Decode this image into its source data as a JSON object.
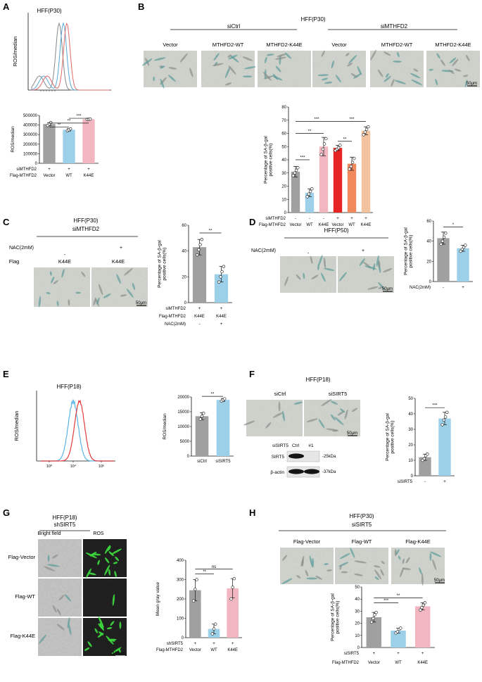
{
  "panels": {
    "A": {
      "letter": "A",
      "histogram": {
        "title": "HFF(P30)",
        "ylabel": "ROS/median",
        "line_colors": [
          "#888888",
          "#5aa7d8",
          "#e06a6a"
        ]
      },
      "bar": {
        "ylabel": "ROS/median",
        "yticks": [
          "0",
          "100000",
          "200000",
          "300000",
          "400000",
          "500000"
        ],
        "rows": [
          {
            "label": "siMTHFD2",
            "values": [
              "+",
              "+",
              "+"
            ]
          },
          {
            "label": "Flag-MTHFD2",
            "values": [
              "Vector",
              "WT",
              "K44E"
            ]
          }
        ],
        "sig": [
          "**",
          "**",
          "***"
        ]
      }
    },
    "B": {
      "letter": "B",
      "title": "HFF(P30)",
      "groups": [
        "siCtrl",
        "siMTHFD2"
      ],
      "image_labels": [
        "Vector",
        "MTHFD2-WT",
        "MTHFD2-K44E",
        "Vector",
        "MTHFD2-WT",
        "MTHFD2-K44E"
      ],
      "scale": "50μm",
      "bar": {
        "ylabel": "Percentage of SA-β-gal\npositive cells(%)",
        "yticks": [
          "0",
          "10",
          "20",
          "30",
          "40",
          "50",
          "60",
          "70",
          "80"
        ],
        "rows": [
          {
            "label": "siMTHFD2",
            "values": [
              "-",
              "-",
              "-",
              "+",
              "+",
              "+"
            ]
          },
          {
            "label": "Flag-MTHFD2",
            "values": [
              "Vector",
              "WT",
              "K44E",
              "Vector",
              "WT",
              "K44E"
            ]
          }
        ],
        "sig": [
          "***",
          "**",
          "***",
          "**",
          "***"
        ]
      }
    },
    "C": {
      "letter": "C",
      "title": "HFF(P30)",
      "subtitle": "siMTHFD2",
      "nac_label": "NAC(2mM)",
      "nac_values": [
        "-",
        "+"
      ],
      "flag_label": "Flag",
      "flag_values": [
        "K44E",
        "K44E"
      ],
      "scale": "50μm",
      "bar": {
        "ylabel": "Percentage of SA-β-gal\npositive cells(%)",
        "yticks": [
          "0",
          "20",
          "40",
          "60"
        ],
        "rows": [
          {
            "label": "siMTHFD2",
            "values": [
              "+",
              "+"
            ]
          },
          {
            "label": "Flag-MTHFD2",
            "values": [
              "K44E",
              "K44E"
            ]
          },
          {
            "label": "NAC(2mM)",
            "values": [
              "-",
              "+"
            ]
          }
        ],
        "sig": [
          "**"
        ]
      }
    },
    "D": {
      "letter": "D",
      "title": "HFF(P50)",
      "nac_label": "NAC(2mM)",
      "nac_values": [
        "-",
        "+"
      ],
      "scale": "50μm",
      "bar": {
        "ylabel": "Percentage of SA-β-gal\npositive cells(%)",
        "yticks": [
          "0",
          "20",
          "40",
          "60"
        ],
        "rows": [
          {
            "label": "NAC(2mM)",
            "values": [
              "-",
              "+"
            ]
          }
        ],
        "sig": [
          "*"
        ]
      }
    },
    "E": {
      "letter": "E",
      "histogram": {
        "title": "HFF(P18)",
        "ylabel": "ROS/median",
        "xticks": [
          "10⁰",
          "10⁴",
          "10⁶"
        ],
        "line_colors": [
          "#5ab4e5",
          "#e23a3a"
        ]
      },
      "bar": {
        "ylabel": "ROS/median",
        "yticks": [
          "0",
          "5000",
          "10000",
          "15000",
          "20000"
        ],
        "categories": [
          "siCtrl",
          "siSIRT5"
        ],
        "sig": [
          "**"
        ]
      }
    },
    "F": {
      "letter": "F",
      "title": "HFF(P18)",
      "image_labels": [
        "siCtrl",
        "siSIRT5"
      ],
      "scale": "50μm",
      "blot": {
        "header_label": "siSIRT5",
        "lanes": [
          "Ctrl",
          "#1"
        ],
        "rows": [
          {
            "label": "SIRT5",
            "kda": "-25kDa"
          },
          {
            "label": "β-actin",
            "kda": "-37kDa"
          }
        ]
      },
      "bar": {
        "ylabel": "Percentage of SA-β-gal\npositive cells(%)",
        "yticks": [
          "0",
          "10",
          "20",
          "30",
          "40",
          "50"
        ],
        "rows": [
          {
            "label": "siSIRT5",
            "values": [
              "-",
              "+"
            ]
          }
        ],
        "sig": [
          "***"
        ]
      }
    },
    "G": {
      "letter": "G",
      "title": "HFF(P18)",
      "subtitle": "shSIRT5",
      "col_labels": [
        "Bright field",
        "ROS"
      ],
      "row_labels": [
        "Flag-Vector",
        "Flag-WT",
        "Flag-K44E"
      ],
      "scale": "100μm",
      "bar": {
        "ylabel": "Mean gray value",
        "yticks": [
          "0",
          "100",
          "200",
          "300",
          "400"
        ],
        "rows": [
          {
            "label": "shSIRT5",
            "values": [
              "+",
              "+",
              "+"
            ]
          },
          {
            "label": "Flag-MTHFD2",
            "values": [
              "Vector",
              "WT",
              "K44E"
            ]
          }
        ],
        "sig": [
          "**",
          "ns"
        ]
      }
    },
    "H": {
      "letter": "H",
      "title": "HFF(P30)",
      "subtitle": "siSIRT5",
      "image_labels": [
        "Flag-Vector",
        "Flag-WT",
        "Flag-K44E"
      ],
      "scale": "50μm",
      "bar": {
        "ylabel": "Percentage of SA-β-gal\npositive cells(%)",
        "yticks": [
          "0",
          "10",
          "20",
          "30",
          "40",
          "50"
        ],
        "rows": [
          {
            "label": "siSIRT5",
            "values": [
              "+",
              "+",
              "+"
            ]
          },
          {
            "label": "Flag-MTHFD2",
            "values": [
              "Vector",
              "WT",
              "K44E"
            ]
          }
        ],
        "sig": [
          "***",
          "**"
        ]
      }
    }
  },
  "chart_data": [
    {
      "panel": "A",
      "type": "bar",
      "categories": [
        "Vector",
        "WT",
        "K44E"
      ],
      "values": [
        410000,
        350000,
        460000
      ],
      "errors": [
        15000,
        12000,
        5000
      ],
      "points": [
        [
          395000,
          410000,
          425000
        ],
        [
          340000,
          350000,
          360000
        ],
        [
          458000,
          460000,
          462000
        ]
      ],
      "colors": [
        "#a0a0a0",
        "#9ccfe8",
        "#f2b6c0"
      ],
      "ylabel": "ROS/median",
      "ylim": [
        0,
        500000
      ]
    },
    {
      "panel": "B",
      "type": "bar",
      "categories": [
        "Vector",
        "WT",
        "K44E",
        "Vector",
        "WT",
        "K44E"
      ],
      "values": [
        31,
        15,
        50,
        49,
        37,
        62
      ],
      "errors": [
        4,
        3,
        7,
        2,
        5,
        3
      ],
      "points": [
        [
          28,
          30,
          32,
          34
        ],
        [
          12,
          14,
          16,
          18
        ],
        [
          44,
          48,
          52,
          56
        ],
        [
          47,
          48,
          49,
          51
        ],
        [
          33,
          35,
          38,
          41
        ],
        [
          59,
          61,
          63,
          65
        ]
      ],
      "colors": [
        "#a0a0a0",
        "#9ccfe8",
        "#f2b6c0",
        "#e62424",
        "#f08a5d",
        "#f2c39e"
      ],
      "ylabel": "Percentage of SA-β-gal\npositive cells(%)",
      "ylim": [
        0,
        80
      ]
    },
    {
      "panel": "C",
      "type": "bar",
      "categories": [
        "K44E",
        "K44E"
      ],
      "values": [
        43,
        22
      ],
      "errors": [
        6,
        6
      ],
      "points": [
        [
          37,
          41,
          45,
          49
        ],
        [
          16,
          20,
          24,
          28
        ]
      ],
      "colors": [
        "#a0a0a0",
        "#9ccfe8"
      ],
      "ylabel": "Percentage of SA-β-gal\npositive cells(%)",
      "ylim": [
        0,
        60
      ]
    },
    {
      "panel": "D",
      "type": "bar",
      "categories": [
        "-",
        "+"
      ],
      "values": [
        43,
        33
      ],
      "errors": [
        6,
        3
      ],
      "points": [
        [
          37,
          40,
          44,
          48
        ],
        [
          30,
          32,
          34,
          36
        ]
      ],
      "colors": [
        "#a0a0a0",
        "#9ccfe8"
      ],
      "ylabel": "Percentage of SA-β-gal\npositive cells(%)",
      "ylim": [
        0,
        60
      ]
    },
    {
      "panel": "E",
      "type": "bar",
      "categories": [
        "siCtrl",
        "siSIRT5"
      ],
      "values": [
        13500,
        19000
      ],
      "errors": [
        1200,
        500
      ],
      "points": [
        [
          12500,
          13500,
          14500
        ],
        [
          18600,
          19000,
          19400
        ]
      ],
      "colors": [
        "#a0a0a0",
        "#9ccfe8"
      ],
      "ylabel": "ROS/median",
      "ylim": [
        0,
        20000
      ]
    },
    {
      "panel": "F",
      "type": "bar",
      "categories": [
        "-",
        "+"
      ],
      "values": [
        12,
        37
      ],
      "errors": [
        2,
        4
      ],
      "points": [
        [
          10,
          11,
          13,
          14
        ],
        [
          33,
          36,
          38,
          41
        ]
      ],
      "colors": [
        "#a0a0a0",
        "#9ccfe8"
      ],
      "ylabel": "Percentage of SA-β-gal\npositive cells(%)",
      "ylim": [
        0,
        50
      ]
    },
    {
      "panel": "G",
      "type": "bar",
      "categories": [
        "Vector",
        "WT",
        "K44E"
      ],
      "values": [
        245,
        45,
        255
      ],
      "errors": [
        55,
        25,
        50
      ],
      "points": [
        [
          190,
          250,
          300
        ],
        [
          20,
          45,
          70
        ],
        [
          200,
          260,
          305
        ]
      ],
      "colors": [
        "#a0a0a0",
        "#9ccfe8",
        "#f2b6c0"
      ],
      "ylabel": "Mean gray value",
      "ylim": [
        0,
        400
      ]
    },
    {
      "panel": "H",
      "type": "bar",
      "categories": [
        "Vector",
        "WT",
        "K44E"
      ],
      "values": [
        25,
        14,
        34
      ],
      "errors": [
        4,
        2,
        3
      ],
      "points": [
        [
          21,
          24,
          27,
          29
        ],
        [
          12,
          13,
          15,
          16
        ],
        [
          31,
          33,
          35,
          37
        ]
      ],
      "colors": [
        "#a0a0a0",
        "#9ccfe8",
        "#f2b6c0"
      ],
      "ylabel": "Percentage of SA-β-gal\npositive cells(%)",
      "ylim": [
        0,
        50
      ]
    }
  ]
}
